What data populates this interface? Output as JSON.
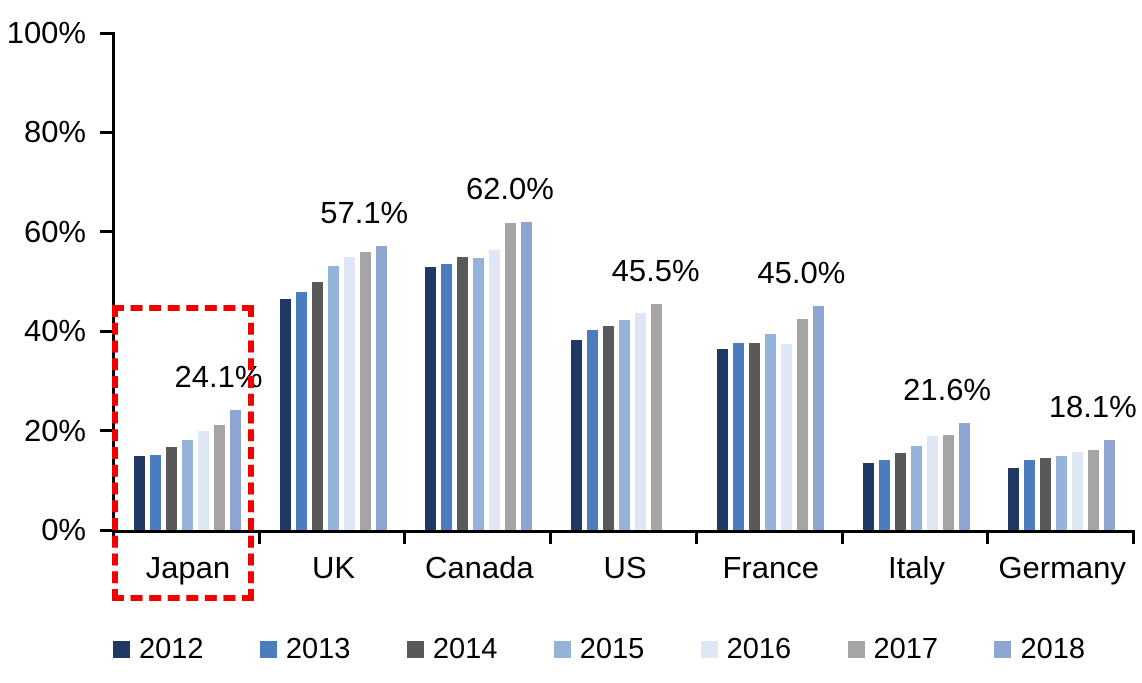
{
  "chart_data": {
    "type": "bar",
    "title": "",
    "xlabel": "",
    "ylabel": "",
    "categories": [
      "Japan",
      "UK",
      "Canada",
      "US",
      "France",
      "Italy",
      "Germany"
    ],
    "series": [
      {
        "name": "2012",
        "color": "#1F3864",
        "values": [
          14.8,
          46.5,
          52.9,
          38.3,
          36.5,
          13.4,
          12.5
        ]
      },
      {
        "name": "2013",
        "color": "#4A7CBE",
        "values": [
          15.0,
          47.8,
          53.5,
          40.2,
          37.7,
          14.0,
          14.1
        ]
      },
      {
        "name": "2014",
        "color": "#595959",
        "values": [
          16.7,
          50.0,
          54.9,
          41.0,
          37.6,
          15.4,
          14.5
        ]
      },
      {
        "name": "2015",
        "color": "#94B3D9",
        "values": [
          18.1,
          53.2,
          54.7,
          42.2,
          39.4,
          16.9,
          14.9
        ]
      },
      {
        "name": "2016",
        "color": "#DEE7F3",
        "values": [
          20.0,
          55.0,
          56.3,
          43.6,
          37.5,
          19.0,
          15.6
        ]
      },
      {
        "name": "2017",
        "color": "#A5A5A5",
        "values": [
          21.2,
          55.9,
          61.7,
          45.5,
          42.4,
          19.2,
          16.0
        ]
      },
      {
        "name": "2018",
        "color": "#8FA5D1",
        "values": [
          24.1,
          57.1,
          62.0,
          null,
          45.0,
          21.6,
          18.1
        ]
      }
    ],
    "group_peak_labels": [
      "24.1%",
      "57.1%",
      "62.0%",
      "45.5%",
      "45.0%",
      "21.6%",
      "18.1%"
    ],
    "y_axis": {
      "tick_labels": [
        "0%",
        "20%",
        "40%",
        "60%",
        "80%",
        "100%"
      ],
      "tick_values": [
        0,
        20,
        40,
        60,
        80,
        100
      ],
      "ylim": [
        0,
        100
      ]
    },
    "legend": {
      "position": "bottom",
      "entries": [
        "2012",
        "2013",
        "2014",
        "2015",
        "2016",
        "2017",
        "2018"
      ]
    },
    "grid": false,
    "annotations": {
      "highlight_box": {
        "category": "Japan",
        "style": "dashed",
        "color": "#F20000"
      }
    }
  }
}
